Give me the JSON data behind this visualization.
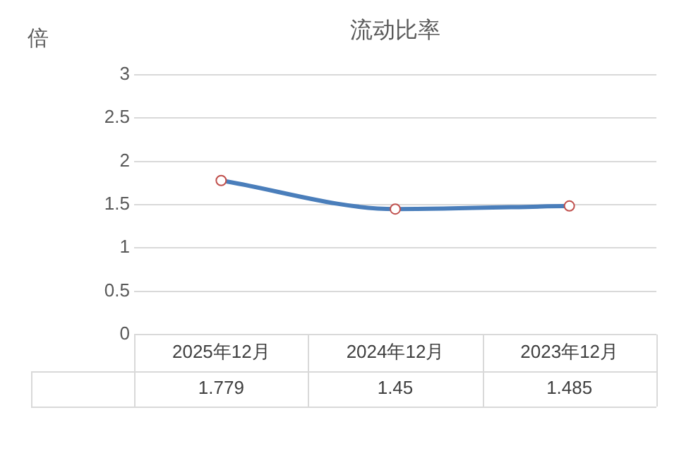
{
  "chart_data": {
    "type": "line",
    "title": "流动比率",
    "ylabel": "倍",
    "categories": [
      "2025年12月",
      "2024年12月",
      "2023年12月"
    ],
    "series": [
      {
        "color": "#4a7ebb",
        "values": [
          1.779,
          1.45,
          1.485
        ]
      }
    ],
    "ylim": [
      0,
      3
    ],
    "yticks": [
      0,
      0.5,
      1,
      1.5,
      2,
      2.5,
      3
    ],
    "grid": "y",
    "marker": "circle",
    "data_labels": true
  }
}
